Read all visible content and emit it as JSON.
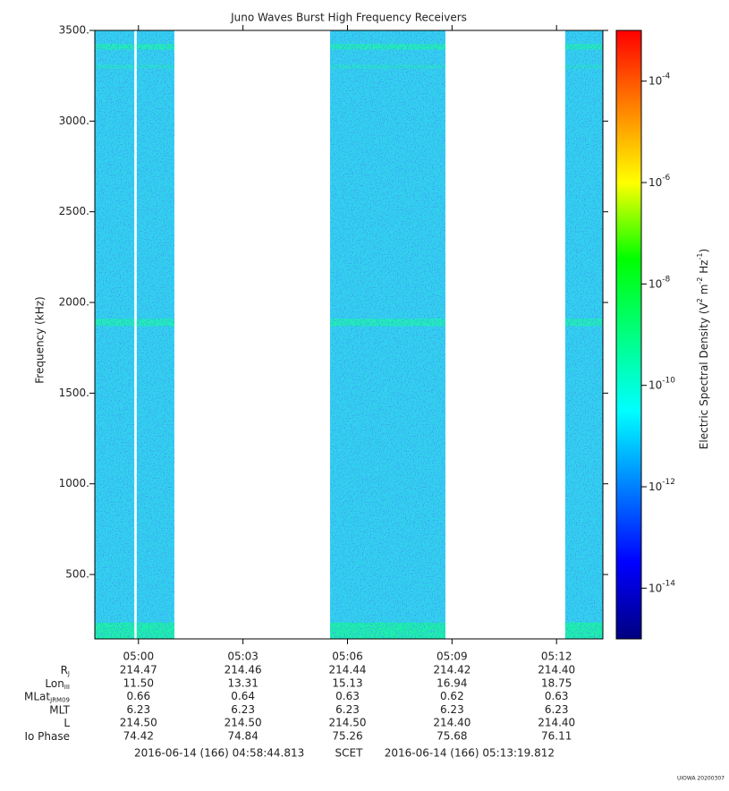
{
  "chart_data": {
    "type": "spectrogram",
    "title": "Juno Waves Burst High Frequency Receivers",
    "y_label": "Frequency (kHz)",
    "ylim": [
      145,
      3500
    ],
    "yticks": [
      {
        "value": 500,
        "label": "500."
      },
      {
        "value": 1000,
        "label": "1000."
      },
      {
        "value": 1500,
        "label": "1500."
      },
      {
        "value": 2000,
        "label": "2000."
      },
      {
        "value": 2500,
        "label": "2500."
      },
      {
        "value": 3000,
        "label": "3000."
      },
      {
        "value": 3500,
        "label": "3500."
      }
    ],
    "xlim": [
      298.747,
      313.33
    ],
    "xticks": [
      {
        "value": 300,
        "label": "05:00"
      },
      {
        "value": 303,
        "label": "05:03"
      },
      {
        "value": 306,
        "label": "05:06"
      },
      {
        "value": 309,
        "label": "05:09"
      },
      {
        "value": 312,
        "label": "05:12"
      }
    ],
    "base_color": "#33d0ee",
    "segments": [
      [
        298.747,
        299.88
      ],
      [
        299.95,
        301.03
      ],
      [
        305.5,
        308.81
      ],
      [
        312.25,
        313.33
      ]
    ],
    "bands": [
      {
        "from": 3395,
        "to": 3425,
        "color": "#22ecb8"
      },
      {
        "from": 3290,
        "to": 3310,
        "color": "#2ae0d0"
      },
      {
        "from": 1870,
        "to": 1910,
        "color": "#22ecb8"
      },
      {
        "from": 145,
        "to": 235,
        "color": "#1ef0a8"
      }
    ],
    "colorbar": {
      "log": true,
      "lim": [
        1e-15,
        0.001
      ],
      "colormap": [
        "#000080",
        "#0000ff",
        "#0080ff",
        "#00ffff",
        "#00ff80",
        "#00ff00",
        "#ffff00",
        "#ff8000",
        "#ff0000"
      ],
      "ticks": [
        {
          "value": 0.0001,
          "label": "10",
          "sup": "-4"
        },
        {
          "value": 1e-06,
          "label": "10",
          "sup": "-6"
        },
        {
          "value": 1e-08,
          "label": "10",
          "sup": "-8"
        },
        {
          "value": 1e-10,
          "label": "10",
          "sup": "-10"
        },
        {
          "value": 1e-12,
          "label": "10",
          "sup": "-12"
        },
        {
          "value": 1e-14,
          "label": "10",
          "sup": "-14"
        }
      ],
      "label": [
        {
          "text": "Electric Spectral Density (V"
        },
        {
          "sup": "2"
        },
        {
          "text": " m"
        },
        {
          "sup": "-2"
        },
        {
          "text": " Hz"
        },
        {
          "sup": "-1"
        },
        {
          "text": ")"
        }
      ]
    },
    "ephemeris": [
      {
        "label": "R",
        "sub": "J",
        "values": [
          "214.47",
          "214.46",
          "214.44",
          "214.42",
          "214.40"
        ]
      },
      {
        "label": "Lon",
        "sub": "III",
        "values": [
          "11.50",
          "13.31",
          "15.13",
          "16.94",
          "18.75"
        ]
      },
      {
        "label": "MLat",
        "sub": "JRM09",
        "values": [
          "0.66",
          "0.64",
          "0.63",
          "0.62",
          "0.63"
        ]
      },
      {
        "label": "MLT",
        "values": [
          "6.23",
          "6.23",
          "6.23",
          "6.23",
          "6.23"
        ]
      },
      {
        "label": "L",
        "values": [
          "214.50",
          "214.50",
          "214.50",
          "214.40",
          "214.40"
        ]
      },
      {
        "label": "Io Phase",
        "values": [
          "74.42",
          "74.84",
          "75.26",
          "75.68",
          "76.11"
        ]
      }
    ],
    "time_start": "2016-06-14 (166) 04:58:44.813",
    "time_system": "SCET",
    "time_end": "2016-06-14 (166) 05:13:19.812",
    "stamp": "UIOWA 20200307"
  }
}
